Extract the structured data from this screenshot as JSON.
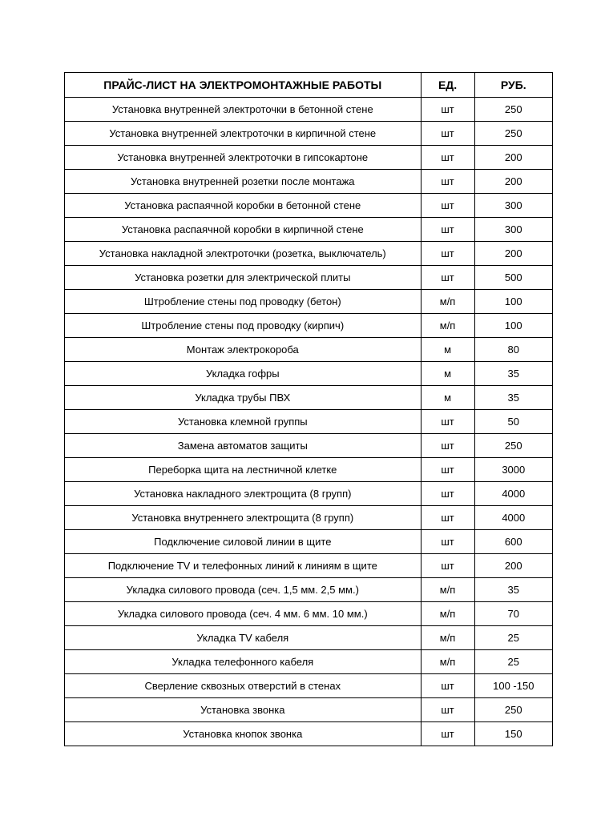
{
  "table": {
    "type": "table",
    "columns": [
      {
        "label": "ПРАЙС-ЛИСТ НА ЭЛЕКТРОМОНТАЖНЫЕ РАБОТЫ",
        "class": "col-desc"
      },
      {
        "label": "ЕД.",
        "class": "col-unit"
      },
      {
        "label": "РУБ.",
        "class": "col-price"
      }
    ],
    "rows": [
      [
        "Установка внутренней электроточки в бетонной стене",
        "шт",
        "250"
      ],
      [
        "Установка внутренней электроточки в кирпичной стене",
        "шт",
        "250"
      ],
      [
        "Установка внутренней электроточки в гипсокартоне",
        "шт",
        "200"
      ],
      [
        "Установка внутренней розетки после монтажа",
        "шт",
        "200"
      ],
      [
        "Установка распаячной коробки в бетонной стене",
        "шт",
        "300"
      ],
      [
        "Установка распаячной коробки в кирпичной стене",
        "шт",
        "300"
      ],
      [
        "Установка накладной электроточки (розетка, выключатель)",
        "шт",
        "200"
      ],
      [
        "Установка розетки для электрической плиты",
        "шт",
        "500"
      ],
      [
        "Штробление стены под проводку (бетон)",
        "м/п",
        "100"
      ],
      [
        "Штробление стены под проводку (кирпич)",
        "м/п",
        "100"
      ],
      [
        "Монтаж электрокороба",
        "м",
        "80"
      ],
      [
        "Укладка гофры",
        "м",
        "35"
      ],
      [
        "Укладка трубы ПВХ",
        "м",
        "35"
      ],
      [
        "Установка клемной группы",
        "шт",
        "50"
      ],
      [
        "Замена автоматов защиты",
        "шт",
        "250"
      ],
      [
        "Переборка щита на лестничной клетке",
        "шт",
        "3000"
      ],
      [
        "Установка накладного электрощита (8 групп)",
        "шт",
        "4000"
      ],
      [
        "Установка внутреннего электрощита (8 групп)",
        "шт",
        "4000"
      ],
      [
        "Подключение силовой линии в щите",
        "шт",
        "600"
      ],
      [
        "Подключение TV и телефонных линий к линиям в щите",
        "шт",
        "200"
      ],
      [
        "Укладка силового провода (сеч. 1,5 мм. 2,5 мм.)",
        "м/п",
        "35"
      ],
      [
        "Укладка силового провода (сеч. 4 мм. 6 мм. 10 мм.)",
        "м/п",
        "70"
      ],
      [
        "Укладка TV кабеля",
        "м/п",
        "25"
      ],
      [
        "Укладка телефонного кабеля",
        "м/п",
        "25"
      ],
      [
        "Сверление сквозных отверстий в стенах",
        "шт",
        "100 -150"
      ],
      [
        "Установка звонка",
        "шт",
        "250"
      ],
      [
        "Установка кнопок звонка",
        "шт",
        "150"
      ]
    ],
    "border_color": "#000000",
    "background_color": "#ffffff",
    "text_color": "#000000",
    "header_fontsize": 14,
    "cell_fontsize": 13,
    "font_family": "Arial"
  }
}
